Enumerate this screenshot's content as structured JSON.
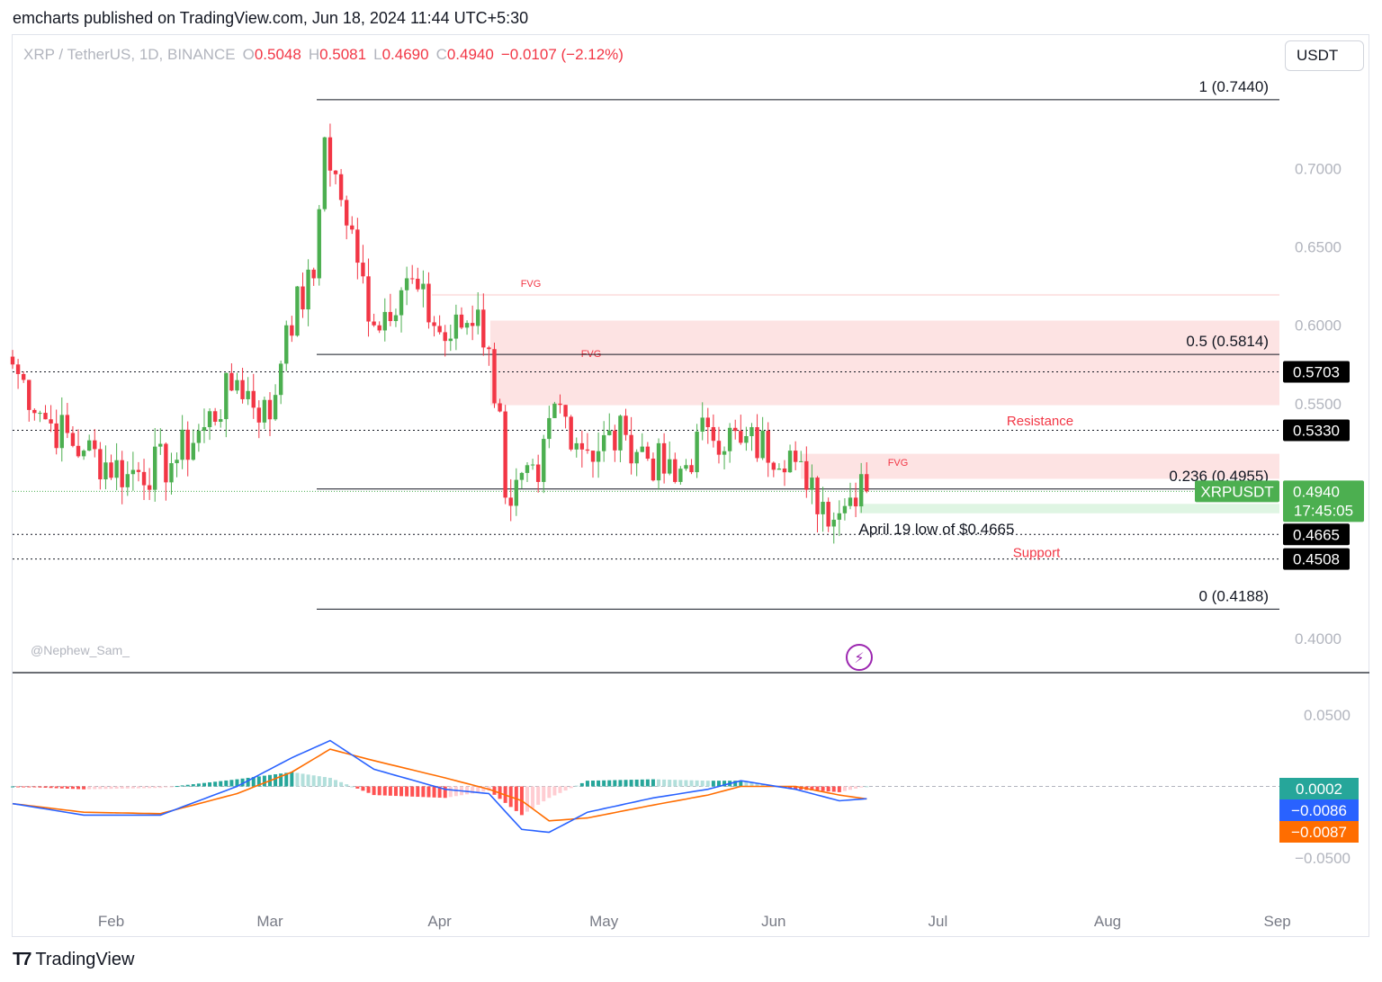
{
  "caption": "emcharts published on TradingView.com, Jun 18, 2024 11:44 UTC+5:30",
  "currency": "USDT",
  "legend": {
    "symbol": "XRP / TetherUS, 1D, BINANCE",
    "o_label": "O",
    "o": "0.5048",
    "h_label": "H",
    "h": "0.5081",
    "l_label": "L",
    "l": "0.4690",
    "c_label": "C",
    "c": "0.4940",
    "change": "−0.0107 (−2.12%)"
  },
  "watermark": "@Nephew_Sam_",
  "footer_brand": "TradingView",
  "colors": {
    "up": "#4caf50",
    "down": "#f23645",
    "fvg_zone": "#fde3e3",
    "support_zone": "#dff5e3",
    "macd": "#2962ff",
    "signal": "#ff6d00",
    "label_black": "#000000"
  },
  "chart_data": {
    "type": "candlestick",
    "symbol": "XRPUSDT",
    "timeframe": "1D",
    "price_axis": {
      "ylim": [
        0.38,
        0.76
      ],
      "ticks": [
        "0.7000",
        "0.6500",
        "0.6000",
        "0.5500",
        "0.4000"
      ],
      "tick_values": [
        0.7,
        0.65,
        0.6,
        0.55,
        0.4
      ]
    },
    "time_axis": {
      "start": "2024-01-14",
      "labels": [
        "Feb",
        "Mar",
        "Apr",
        "May",
        "Jun",
        "Jul",
        "Aug",
        "Sep"
      ],
      "label_dates": [
        "2024-02-01",
        "2024-03-01",
        "2024-04-01",
        "2024-05-01",
        "2024-06-01",
        "2024-07-01",
        "2024-08-01",
        "2024-09-01"
      ]
    },
    "close_anchors": [
      {
        "date": "2024-01-14",
        "close": 0.575
      },
      {
        "date": "2024-01-20",
        "close": 0.54
      },
      {
        "date": "2024-01-27",
        "close": 0.52
      },
      {
        "date": "2024-02-04",
        "close": 0.505
      },
      {
        "date": "2024-02-12",
        "close": 0.512
      },
      {
        "date": "2024-02-18",
        "close": 0.535
      },
      {
        "date": "2024-02-24",
        "close": 0.565
      },
      {
        "date": "2024-03-01",
        "close": 0.54
      },
      {
        "date": "2024-03-04",
        "close": 0.6
      },
      {
        "date": "2024-03-09",
        "close": 0.63
      },
      {
        "date": "2024-03-11",
        "close": 0.72
      },
      {
        "date": "2024-03-14",
        "close": 0.68
      },
      {
        "date": "2024-03-17",
        "close": 0.64
      },
      {
        "date": "2024-03-20",
        "close": 0.6
      },
      {
        "date": "2024-03-26",
        "close": 0.63
      },
      {
        "date": "2024-04-02",
        "close": 0.59
      },
      {
        "date": "2024-04-08",
        "close": 0.61
      },
      {
        "date": "2024-04-12",
        "close": 0.545
      },
      {
        "date": "2024-04-13",
        "close": 0.49
      },
      {
        "date": "2024-04-19",
        "close": 0.5
      },
      {
        "date": "2024-04-22",
        "close": 0.55
      },
      {
        "date": "2024-04-28",
        "close": 0.52
      },
      {
        "date": "2024-05-05",
        "close": 0.53
      },
      {
        "date": "2024-05-14",
        "close": 0.5
      },
      {
        "date": "2024-05-20",
        "close": 0.535
      },
      {
        "date": "2024-05-26",
        "close": 0.525
      },
      {
        "date": "2024-06-04",
        "close": 0.52
      },
      {
        "date": "2024-06-07",
        "close": 0.495
      },
      {
        "date": "2024-06-13",
        "close": 0.48
      },
      {
        "date": "2024-06-15",
        "close": 0.49
      },
      {
        "date": "2024-06-17",
        "close": 0.505
      },
      {
        "date": "2024-06-18",
        "close": 0.494
      }
    ],
    "fibonacci": [
      {
        "level": "1",
        "value": 0.744,
        "label": "1 (0.7440)"
      },
      {
        "level": "0.5",
        "value": 0.5814,
        "label": "0.5 (0.5814)"
      },
      {
        "level": "0.236",
        "value": 0.4955,
        "label": "0.236 (0.4955)"
      },
      {
        "level": "0",
        "value": 0.4188,
        "label": "0 (0.4188)"
      }
    ],
    "horizontal_levels": [
      {
        "value": 0.5703,
        "label": "0.5703"
      },
      {
        "value": 0.533,
        "label": "0.5330"
      },
      {
        "value": 0.4665,
        "label": "0.4665"
      },
      {
        "value": 0.4508,
        "label": "0.4508"
      }
    ],
    "fvg_zones": [
      {
        "label": "FVG",
        "top": 0.62,
        "bottom": 0.619
      },
      {
        "label": "FVG",
        "top": 0.603,
        "bottom": 0.549
      },
      {
        "label": "FVG",
        "top": 0.518,
        "bottom": 0.502
      }
    ],
    "support_zone": {
      "top": 0.486,
      "bottom": 0.48
    },
    "annotations": [
      {
        "text": "Resistance",
        "value": 0.5395
      },
      {
        "text": "Support",
        "value": 0.4555
      },
      {
        "text": "April 19 low of $0.4665",
        "value": 0.47
      }
    ],
    "last_price": {
      "symbol": "XRPUSDT",
      "price": "0.4940",
      "countdown": "17:45:05"
    },
    "macd": {
      "ylim": [
        -0.085,
        0.075
      ],
      "ticks": [
        "0.0500",
        "-0.0500"
      ],
      "tick_labels": [
        "0.0500",
        "−0.0500"
      ],
      "tick_values": [
        0.05,
        -0.05
      ],
      "hist_label": "0.0002",
      "macd_label": "−0.0086",
      "signal_label": "−0.0087",
      "macd_anchors": [
        {
          "date": "2024-01-14",
          "value": -0.012
        },
        {
          "date": "2024-01-27",
          "value": -0.02
        },
        {
          "date": "2024-02-10",
          "value": -0.02
        },
        {
          "date": "2024-02-24",
          "value": 0.0
        },
        {
          "date": "2024-03-05",
          "value": 0.02
        },
        {
          "date": "2024-03-12",
          "value": 0.032
        },
        {
          "date": "2024-03-20",
          "value": 0.012
        },
        {
          "date": "2024-04-02",
          "value": -0.002
        },
        {
          "date": "2024-04-10",
          "value": -0.005
        },
        {
          "date": "2024-04-16",
          "value": -0.03
        },
        {
          "date": "2024-04-21",
          "value": -0.032
        },
        {
          "date": "2024-04-28",
          "value": -0.018
        },
        {
          "date": "2024-05-10",
          "value": -0.008
        },
        {
          "date": "2024-05-20",
          "value": -0.002
        },
        {
          "date": "2024-05-26",
          "value": 0.004
        },
        {
          "date": "2024-06-05",
          "value": -0.002
        },
        {
          "date": "2024-06-13",
          "value": -0.01
        },
        {
          "date": "2024-06-18",
          "value": -0.0086
        }
      ],
      "signal_anchors": [
        {
          "date": "2024-01-14",
          "value": -0.012
        },
        {
          "date": "2024-01-27",
          "value": -0.018
        },
        {
          "date": "2024-02-10",
          "value": -0.019
        },
        {
          "date": "2024-02-24",
          "value": -0.005
        },
        {
          "date": "2024-03-05",
          "value": 0.01
        },
        {
          "date": "2024-03-12",
          "value": 0.026
        },
        {
          "date": "2024-03-20",
          "value": 0.018
        },
        {
          "date": "2024-04-02",
          "value": 0.006
        },
        {
          "date": "2024-04-10",
          "value": -0.002
        },
        {
          "date": "2024-04-16",
          "value": -0.01
        },
        {
          "date": "2024-04-21",
          "value": -0.024
        },
        {
          "date": "2024-04-28",
          "value": -0.022
        },
        {
          "date": "2024-05-10",
          "value": -0.013
        },
        {
          "date": "2024-05-20",
          "value": -0.006
        },
        {
          "date": "2024-05-26",
          "value": 0.0
        },
        {
          "date": "2024-06-05",
          "value": 0.0
        },
        {
          "date": "2024-06-13",
          "value": -0.006
        },
        {
          "date": "2024-06-18",
          "value": -0.0087
        }
      ]
    }
  }
}
